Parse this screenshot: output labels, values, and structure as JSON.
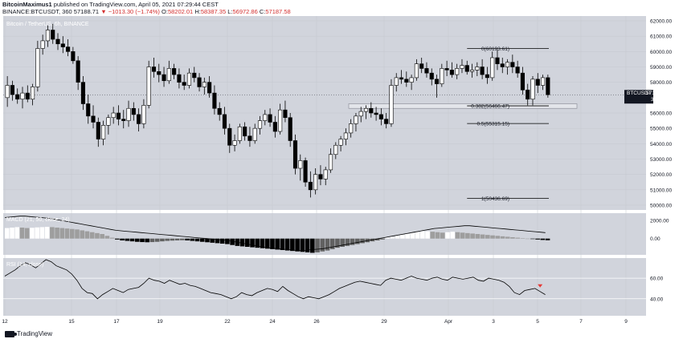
{
  "header": {
    "author": "BitcoinMaximus1",
    "published_text": "published on TradingView.com, April 05, 2021 07:29:44 CEST",
    "symbol_line": "BINANCE:BTCUSDT, 360",
    "price": "57188.71",
    "change": "▼ −1013.30 (−1.74%)",
    "o_label": "O:",
    "o_value": "58202.01",
    "h_label": "H:",
    "h_value": "58387.35",
    "l_label": "L:",
    "l_value": "56972.86",
    "c_label": "C:",
    "c_value": "57187.58"
  },
  "footer": {
    "brand": "TradingView"
  },
  "colors": {
    "panel_bg": "#d1d4dc",
    "bull": "#ffffff",
    "bear": "#000000",
    "fib_box": "#b0b3bb",
    "accent_red": "#e53935"
  },
  "chart_data": {
    "type": "candlestick",
    "title": "Bitcoin / TetherUS, 6h, BINANCE",
    "ylim": [
      50000,
      62000
    ],
    "y_ticks": [
      "62000.00",
      "61000.00",
      "60000.00",
      "59000.00",
      "58000.00",
      "56000.00",
      "55000.00",
      "54000.00",
      "53000.00",
      "52000.00",
      "51000.00",
      "50000.00"
    ],
    "x_tick_labels": [
      "12",
      "15",
      "17",
      "19",
      "22",
      "24",
      "26",
      "29",
      "Apr",
      "3",
      "5",
      "7",
      "9"
    ],
    "last_price_label": "BTCUSDT",
    "last_price": "57187.58",
    "countdown": "30:19",
    "candles": [
      {
        "o": 57000,
        "h": 58400,
        "l": 56400,
        "c": 57800
      },
      {
        "o": 57800,
        "h": 58100,
        "l": 56800,
        "c": 57200
      },
      {
        "o": 57200,
        "h": 57600,
        "l": 56600,
        "c": 56900
      },
      {
        "o": 56900,
        "h": 57700,
        "l": 56300,
        "c": 57300
      },
      {
        "o": 57300,
        "h": 57800,
        "l": 56700,
        "c": 56900
      },
      {
        "o": 56900,
        "h": 57900,
        "l": 56500,
        "c": 57700
      },
      {
        "o": 57700,
        "h": 60700,
        "l": 57400,
        "c": 60200
      },
      {
        "o": 60200,
        "h": 61100,
        "l": 59800,
        "c": 60700
      },
      {
        "o": 60700,
        "h": 61700,
        "l": 60300,
        "c": 61400
      },
      {
        "o": 61400,
        "h": 61800,
        "l": 60500,
        "c": 60800
      },
      {
        "o": 60800,
        "h": 61200,
        "l": 60100,
        "c": 60500
      },
      {
        "o": 60500,
        "h": 61000,
        "l": 59900,
        "c": 60300
      },
      {
        "o": 60300,
        "h": 60800,
        "l": 59700,
        "c": 60000
      },
      {
        "o": 60000,
        "h": 60300,
        "l": 59200,
        "c": 59400
      },
      {
        "o": 59400,
        "h": 59700,
        "l": 57500,
        "c": 58000
      },
      {
        "o": 58000,
        "h": 58400,
        "l": 56200,
        "c": 56600
      },
      {
        "o": 56600,
        "h": 57200,
        "l": 55300,
        "c": 55800
      },
      {
        "o": 55800,
        "h": 56500,
        "l": 55000,
        "c": 55400
      },
      {
        "o": 55400,
        "h": 55700,
        "l": 53800,
        "c": 54300
      },
      {
        "o": 54300,
        "h": 55500,
        "l": 53900,
        "c": 55200
      },
      {
        "o": 55200,
        "h": 55900,
        "l": 54600,
        "c": 55700
      },
      {
        "o": 55700,
        "h": 56400,
        "l": 55300,
        "c": 56000
      },
      {
        "o": 56000,
        "h": 56500,
        "l": 55200,
        "c": 55600
      },
      {
        "o": 55600,
        "h": 56200,
        "l": 55000,
        "c": 55500
      },
      {
        "o": 55500,
        "h": 56800,
        "l": 55100,
        "c": 56300
      },
      {
        "o": 56300,
        "h": 56700,
        "l": 55500,
        "c": 55900
      },
      {
        "o": 55900,
        "h": 56300,
        "l": 54800,
        "c": 55300
      },
      {
        "o": 55300,
        "h": 56900,
        "l": 55000,
        "c": 56500
      },
      {
        "o": 56500,
        "h": 59400,
        "l": 56300,
        "c": 59000
      },
      {
        "o": 59000,
        "h": 59600,
        "l": 58300,
        "c": 58700
      },
      {
        "o": 58700,
        "h": 59200,
        "l": 58000,
        "c": 58500
      },
      {
        "o": 58500,
        "h": 59000,
        "l": 57700,
        "c": 58100
      },
      {
        "o": 58100,
        "h": 59400,
        "l": 57900,
        "c": 58900
      },
      {
        "o": 58900,
        "h": 59200,
        "l": 58200,
        "c": 58500
      },
      {
        "o": 58500,
        "h": 58900,
        "l": 57600,
        "c": 58000
      },
      {
        "o": 58000,
        "h": 58500,
        "l": 57500,
        "c": 57800
      },
      {
        "o": 57800,
        "h": 58900,
        "l": 57600,
        "c": 58600
      },
      {
        "o": 58600,
        "h": 59000,
        "l": 58000,
        "c": 58300
      },
      {
        "o": 58300,
        "h": 58600,
        "l": 57400,
        "c": 57700
      },
      {
        "o": 57700,
        "h": 58300,
        "l": 57200,
        "c": 58000
      },
      {
        "o": 58000,
        "h": 58400,
        "l": 57000,
        "c": 57300
      },
      {
        "o": 57300,
        "h": 57800,
        "l": 55900,
        "c": 56300
      },
      {
        "o": 56300,
        "h": 56700,
        "l": 55500,
        "c": 55900
      },
      {
        "o": 55900,
        "h": 56400,
        "l": 54600,
        "c": 55000
      },
      {
        "o": 55000,
        "h": 55300,
        "l": 53400,
        "c": 53900
      },
      {
        "o": 53900,
        "h": 54600,
        "l": 53500,
        "c": 54200
      },
      {
        "o": 54200,
        "h": 55300,
        "l": 54000,
        "c": 55100
      },
      {
        "o": 55100,
        "h": 55400,
        "l": 54200,
        "c": 54500
      },
      {
        "o": 54500,
        "h": 55100,
        "l": 53800,
        "c": 54200
      },
      {
        "o": 54200,
        "h": 55300,
        "l": 54000,
        "c": 55000
      },
      {
        "o": 55000,
        "h": 55800,
        "l": 54600,
        "c": 55500
      },
      {
        "o": 55500,
        "h": 56200,
        "l": 55200,
        "c": 55900
      },
      {
        "o": 55900,
        "h": 56300,
        "l": 55100,
        "c": 55400
      },
      {
        "o": 55400,
        "h": 55800,
        "l": 54400,
        "c": 54800
      },
      {
        "o": 54800,
        "h": 56600,
        "l": 54600,
        "c": 56200
      },
      {
        "o": 56200,
        "h": 56800,
        "l": 55400,
        "c": 55700
      },
      {
        "o": 55700,
        "h": 56000,
        "l": 53800,
        "c": 54200
      },
      {
        "o": 54200,
        "h": 54600,
        "l": 52000,
        "c": 52400
      },
      {
        "o": 52400,
        "h": 53300,
        "l": 51600,
        "c": 52900
      },
      {
        "o": 52900,
        "h": 53100,
        "l": 51200,
        "c": 51500
      },
      {
        "o": 51500,
        "h": 52200,
        "l": 50500,
        "c": 51000
      },
      {
        "o": 51000,
        "h": 52400,
        "l": 50700,
        "c": 52000
      },
      {
        "o": 52000,
        "h": 52600,
        "l": 51300,
        "c": 51700
      },
      {
        "o": 51700,
        "h": 52500,
        "l": 51300,
        "c": 52300
      },
      {
        "o": 52300,
        "h": 53700,
        "l": 52100,
        "c": 53300
      },
      {
        "o": 53300,
        "h": 54100,
        "l": 53000,
        "c": 53900
      },
      {
        "o": 53900,
        "h": 54500,
        "l": 53500,
        "c": 54300
      },
      {
        "o": 54300,
        "h": 55000,
        "l": 53900,
        "c": 54700
      },
      {
        "o": 54700,
        "h": 55600,
        "l": 54400,
        "c": 55300
      },
      {
        "o": 55300,
        "h": 56000,
        "l": 54800,
        "c": 55800
      },
      {
        "o": 55800,
        "h": 56400,
        "l": 55400,
        "c": 56100
      },
      {
        "o": 56100,
        "h": 56500,
        "l": 55600,
        "c": 56300
      },
      {
        "o": 56300,
        "h": 56700,
        "l": 55700,
        "c": 56000
      },
      {
        "o": 56000,
        "h": 56400,
        "l": 55500,
        "c": 55900
      },
      {
        "o": 55900,
        "h": 56300,
        "l": 55200,
        "c": 55600
      },
      {
        "o": 55600,
        "h": 56000,
        "l": 55000,
        "c": 55300
      },
      {
        "o": 55300,
        "h": 58200,
        "l": 55100,
        "c": 57800
      },
      {
        "o": 57800,
        "h": 58600,
        "l": 57400,
        "c": 58300
      },
      {
        "o": 58300,
        "h": 58800,
        "l": 57900,
        "c": 58200
      },
      {
        "o": 58200,
        "h": 58700,
        "l": 57700,
        "c": 58000
      },
      {
        "o": 58000,
        "h": 58500,
        "l": 57500,
        "c": 58300
      },
      {
        "o": 58300,
        "h": 59500,
        "l": 58100,
        "c": 59200
      },
      {
        "o": 59200,
        "h": 59600,
        "l": 58600,
        "c": 58900
      },
      {
        "o": 58900,
        "h": 59300,
        "l": 58300,
        "c": 58600
      },
      {
        "o": 58600,
        "h": 58900,
        "l": 57800,
        "c": 58200
      },
      {
        "o": 58200,
        "h": 58500,
        "l": 57000,
        "c": 57900
      },
      {
        "o": 57900,
        "h": 59200,
        "l": 57700,
        "c": 58900
      },
      {
        "o": 58900,
        "h": 59400,
        "l": 58400,
        "c": 58800
      },
      {
        "o": 58800,
        "h": 59300,
        "l": 58300,
        "c": 58500
      },
      {
        "o": 58500,
        "h": 59200,
        "l": 58200,
        "c": 58900
      },
      {
        "o": 58900,
        "h": 59500,
        "l": 58600,
        "c": 59100
      },
      {
        "o": 59100,
        "h": 59400,
        "l": 58500,
        "c": 58700
      },
      {
        "o": 58700,
        "h": 59200,
        "l": 58300,
        "c": 58800
      },
      {
        "o": 58800,
        "h": 59300,
        "l": 58400,
        "c": 59000
      },
      {
        "o": 59000,
        "h": 59500,
        "l": 58200,
        "c": 58500
      },
      {
        "o": 58500,
        "h": 59000,
        "l": 57900,
        "c": 58300
      },
      {
        "o": 58300,
        "h": 60000,
        "l": 58100,
        "c": 59600
      },
      {
        "o": 59600,
        "h": 60100,
        "l": 58800,
        "c": 59200
      },
      {
        "o": 59200,
        "h": 59600,
        "l": 58600,
        "c": 59000
      },
      {
        "o": 59000,
        "h": 59500,
        "l": 58500,
        "c": 59300
      },
      {
        "o": 59300,
        "h": 59800,
        "l": 58600,
        "c": 59000
      },
      {
        "o": 59000,
        "h": 59400,
        "l": 58300,
        "c": 58600
      },
      {
        "o": 58600,
        "h": 59000,
        "l": 57200,
        "c": 57500
      },
      {
        "o": 57500,
        "h": 57900,
        "l": 56500,
        "c": 56900
      },
      {
        "o": 56900,
        "h": 58400,
        "l": 56500,
        "c": 58200
      },
      {
        "o": 58200,
        "h": 58600,
        "l": 57300,
        "c": 57800
      },
      {
        "o": 57800,
        "h": 58500,
        "l": 57500,
        "c": 58300
      },
      {
        "o": 58300,
        "h": 58500,
        "l": 57000,
        "c": 57188
      }
    ],
    "fib_levels": [
      {
        "label": "0(60193.61)",
        "value": 60193.61
      },
      {
        "label": "0.382(56466.47)",
        "value": 56466.47
      },
      {
        "label": "0.5(55315.15)",
        "value": 55315.15
      },
      {
        "label": "1(50436.69)",
        "value": 50436.69
      }
    ],
    "macd": {
      "label": "MACD (21, 50, close, 24)",
      "y_ticks": [
        "2000.00",
        "0.00"
      ],
      "histogram": [
        1150,
        1200,
        1250,
        1200,
        1150,
        1180,
        1220,
        1250,
        1280,
        1250,
        1200,
        1150,
        1100,
        1050,
        1000,
        900,
        800,
        700,
        600,
        500,
        300,
        100,
        -100,
        -200,
        -250,
        -300,
        -350,
        -380,
        -400,
        -380,
        -350,
        -300,
        -250,
        -220,
        -200,
        -180,
        -200,
        -250,
        -300,
        -350,
        -400,
        -450,
        -500,
        -550,
        -600,
        -700,
        -800,
        -850,
        -900,
        -950,
        -1000,
        -1050,
        -1100,
        -1150,
        -1200,
        -1250,
        -1300,
        -1350,
        -1400,
        -1450,
        -1500,
        -1550,
        -1500,
        -1400,
        -1300,
        -1150,
        -1000,
        -900,
        -800,
        -700,
        -600,
        -500,
        -400,
        -300,
        -200,
        -100,
        100,
        200,
        300,
        400,
        500,
        600,
        700,
        800,
        800,
        750,
        700,
        650,
        700,
        750,
        700,
        650,
        600,
        550,
        500,
        450,
        400,
        350,
        300,
        250,
        200,
        150,
        100,
        50,
        0,
        -50,
        -100,
        -150,
        -180
      ],
      "macd_line": [
        2300,
        2350,
        2400,
        2450,
        2450,
        2400,
        2350,
        2300,
        2250,
        2200,
        2100,
        2000,
        1900,
        1800,
        1700,
        1600,
        1500,
        1400,
        1300,
        1200,
        1100,
        1000,
        900,
        850,
        800,
        750,
        700,
        650,
        600,
        550,
        500,
        450,
        400,
        350,
        300,
        250,
        200,
        150,
        100,
        50,
        0,
        -50,
        -100,
        -150,
        -200,
        -300,
        -400,
        -500,
        -600,
        -700,
        -800,
        -900,
        -1000,
        -1050,
        -1100,
        -1150,
        -1200,
        -1250,
        -1300,
        -1300,
        -1250,
        -1200,
        -1150,
        -1100,
        -1000,
        -900,
        -800,
        -700,
        -600,
        -500,
        -400,
        -300,
        -200,
        -100,
        0,
        100,
        200,
        300,
        400,
        500,
        600,
        700,
        800,
        900,
        1000,
        1100,
        1150,
        1200,
        1250,
        1300,
        1350,
        1400,
        1400,
        1350,
        1300,
        1250,
        1200,
        1150,
        1100,
        1050,
        1000,
        950,
        900,
        850,
        800,
        750,
        700,
        650
      ]
    },
    "rsi": {
      "label": "RSI (14, close)",
      "y_ticks": [
        "60.00",
        "40.00"
      ],
      "values": [
        62,
        65,
        68,
        72,
        75,
        73,
        70,
        74,
        78,
        76,
        72,
        70,
        68,
        64,
        58,
        50,
        46,
        45,
        40,
        44,
        47,
        50,
        48,
        46,
        49,
        50,
        51,
        55,
        60,
        58,
        57,
        55,
        58,
        56,
        54,
        55,
        53,
        52,
        50,
        48,
        46,
        45,
        44,
        42,
        40,
        42,
        46,
        44,
        43,
        46,
        48,
        50,
        49,
        47,
        52,
        48,
        45,
        42,
        40,
        42,
        41,
        40,
        42,
        44,
        47,
        50,
        52,
        54,
        56,
        57,
        56,
        55,
        54,
        53,
        58,
        60,
        59,
        58,
        60,
        62,
        60,
        59,
        58,
        60,
        61,
        59,
        58,
        61,
        60,
        59,
        60,
        61,
        58,
        57,
        60,
        59,
        58,
        56,
        52,
        46,
        44,
        48,
        49,
        50,
        47,
        44
      ],
      "marker_index": 104
    }
  }
}
